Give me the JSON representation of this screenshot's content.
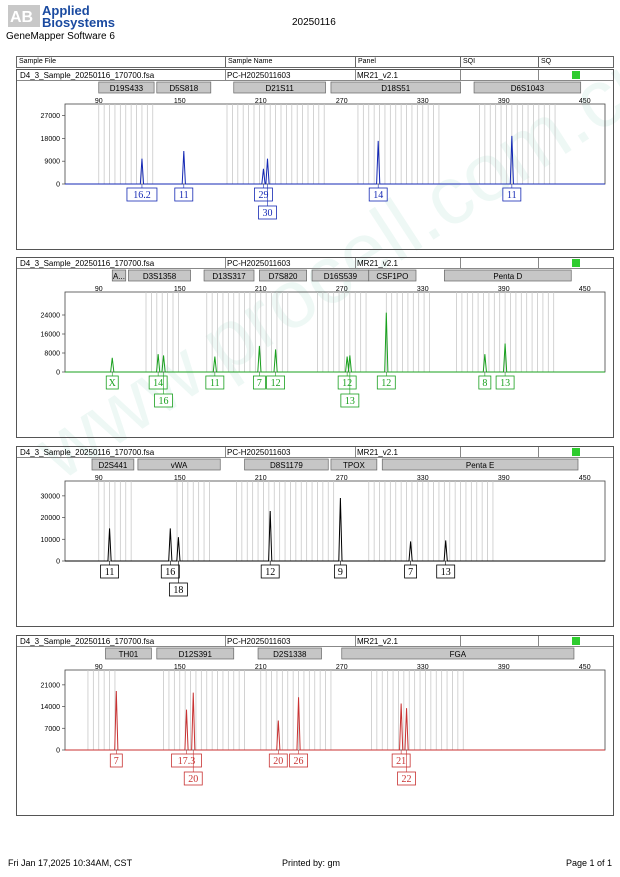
{
  "header": {
    "brand_line1": "Applied",
    "brand_line2": "Biosystems",
    "software": "GeneMapper Software 6",
    "date": "20250116"
  },
  "columns": {
    "sample_file": "Sample File",
    "sample_name": "Sample Name",
    "panel": "Panel",
    "sqi": "SQI",
    "sq": "SQ"
  },
  "watermark": "www.procell.com.cn",
  "footer": {
    "timestamp": "Fri Jan 17,2025 10:34AM, CST",
    "printed_by": "Printed by: gm",
    "page": "Page 1 of 1"
  },
  "chart_data": [
    {
      "type": "line",
      "sample_file": "D4_3_Sample_20250116_170700.fsa",
      "sample_name": "PC-H2025011603",
      "panel": "MR21_v2.1",
      "sq_status_color": "#2ecc2e",
      "color": "#1428b4",
      "xlim": [
        65,
        465
      ],
      "x_ticks": [
        90,
        150,
        210,
        270,
        330,
        390,
        450
      ],
      "ylim": [
        0,
        30000
      ],
      "y_ticks": [
        0,
        9000,
        18000,
        27000
      ],
      "markers": [
        {
          "name": "D19S433",
          "start": 90,
          "end": 131
        },
        {
          "name": "D5S818",
          "start": 133,
          "end": 173
        },
        {
          "name": "D21S11",
          "start": 190,
          "end": 258
        },
        {
          "name": "D18S51",
          "start": 262,
          "end": 358
        },
        {
          "name": "D6S1043",
          "start": 368,
          "end": 447
        }
      ],
      "bins": [
        [
          90,
          130
        ],
        [
          185,
          258
        ],
        [
          282,
          345
        ],
        [
          372,
          430
        ]
      ],
      "peaks": [
        {
          "x": 122,
          "y": 10000,
          "label": "16.2",
          "row": 0
        },
        {
          "x": 153,
          "y": 13000,
          "label": "11",
          "row": 0
        },
        {
          "x": 212,
          "y": 6000,
          "label": "29",
          "row": 0
        },
        {
          "x": 215,
          "y": 10000,
          "label": "30",
          "row": 1
        },
        {
          "x": 297,
          "y": 17000,
          "label": "14",
          "row": 0
        },
        {
          "x": 396,
          "y": 19000,
          "label": "11",
          "row": 0
        }
      ]
    },
    {
      "type": "line",
      "sample_file": "D4_3_Sample_20250116_170700.fsa",
      "sample_name": "PC-H2025011603",
      "panel": "MR21_v2.1",
      "sq_status_color": "#2ecc2e",
      "color": "#19a01e",
      "xlim": [
        65,
        465
      ],
      "x_ticks": [
        90,
        150,
        210,
        270,
        330,
        390,
        450
      ],
      "ylim": [
        0,
        32000
      ],
      "y_ticks": [
        0,
        8000,
        16000,
        24000
      ],
      "markers": [
        {
          "name": "A...",
          "start": 100,
          "end": 110
        },
        {
          "name": "D3S1358",
          "start": 112,
          "end": 158
        },
        {
          "name": "D13S317",
          "start": 168,
          "end": 205
        },
        {
          "name": "D7S820",
          "start": 209,
          "end": 244
        },
        {
          "name": "D16S539",
          "start": 248,
          "end": 290
        },
        {
          "name": "CSF1PO",
          "start": 290,
          "end": 325
        },
        {
          "name": "Penta D",
          "start": 346,
          "end": 440
        }
      ],
      "bins": [
        [
          125,
          150
        ],
        [
          170,
          232
        ],
        [
          252,
          290
        ],
        [
          303,
          335
        ],
        [
          355,
          430
        ]
      ],
      "peaks": [
        {
          "x": 100,
          "y": 6000,
          "label": "X",
          "row": 0
        },
        {
          "x": 134,
          "y": 7500,
          "label": "14",
          "row": 0
        },
        {
          "x": 138,
          "y": 7000,
          "label": "16",
          "row": 1
        },
        {
          "x": 176,
          "y": 6500,
          "label": "11",
          "row": 0
        },
        {
          "x": 209,
          "y": 11000,
          "label": "7",
          "row": 0
        },
        {
          "x": 221,
          "y": 9500,
          "label": "12",
          "row": 0
        },
        {
          "x": 274,
          "y": 6500,
          "label": "12",
          "row": 0
        },
        {
          "x": 276,
          "y": 7000,
          "label": "13",
          "row": 1
        },
        {
          "x": 303,
          "y": 25000,
          "label": "12",
          "row": 0
        },
        {
          "x": 376,
          "y": 7500,
          "label": "8",
          "row": 0
        },
        {
          "x": 391,
          "y": 12000,
          "label": "13",
          "row": 0
        }
      ]
    },
    {
      "type": "line",
      "sample_file": "D4_3_Sample_20250116_170700.fsa",
      "sample_name": "PC-H2025011603",
      "panel": "MR21_v2.1",
      "sq_status_color": "#2ecc2e",
      "color": "#000000",
      "xlim": [
        65,
        465
      ],
      "x_ticks": [
        90,
        150,
        210,
        270,
        330,
        390,
        450
      ],
      "ylim": [
        0,
        35000
      ],
      "y_ticks": [
        0,
        10000,
        20000,
        30000
      ],
      "markers": [
        {
          "name": "D2S441",
          "start": 85,
          "end": 116
        },
        {
          "name": "vWA",
          "start": 119,
          "end": 180
        },
        {
          "name": "D8S1179",
          "start": 198,
          "end": 260
        },
        {
          "name": "TPOX",
          "start": 262,
          "end": 296
        },
        {
          "name": "Penta E",
          "start": 300,
          "end": 445
        }
      ],
      "bins": [
        [
          90,
          116
        ],
        [
          148,
          175
        ],
        [
          192,
          265
        ],
        [
          290,
          385
        ]
      ],
      "peaks": [
        {
          "x": 98,
          "y": 15000,
          "label": "11",
          "row": 0
        },
        {
          "x": 143,
          "y": 15000,
          "label": "16",
          "row": 0
        },
        {
          "x": 149,
          "y": 11000,
          "label": "18",
          "row": 1
        },
        {
          "x": 217,
          "y": 23000,
          "label": "12",
          "row": 0
        },
        {
          "x": 269,
          "y": 29000,
          "label": "9",
          "row": 0
        },
        {
          "x": 321,
          "y": 9000,
          "label": "7",
          "row": 0
        },
        {
          "x": 347,
          "y": 9500,
          "label": "13",
          "row": 0
        }
      ]
    },
    {
      "type": "line",
      "sample_file": "D4_3_Sample_20250116_170700.fsa",
      "sample_name": "PC-H2025011603",
      "panel": "MR21_v2.1",
      "sq_status_color": "#2ecc2e",
      "color": "#c83232",
      "xlim": [
        65,
        465
      ],
      "x_ticks": [
        90,
        150,
        210,
        270,
        330,
        390,
        450
      ],
      "ylim": [
        0,
        24500
      ],
      "y_ticks": [
        0,
        7000,
        14000,
        21000
      ],
      "markers": [
        {
          "name": "TH01",
          "start": 95,
          "end": 129
        },
        {
          "name": "D12S391",
          "start": 133,
          "end": 190
        },
        {
          "name": "D2S1338",
          "start": 208,
          "end": 255
        },
        {
          "name": "FGA",
          "start": 270,
          "end": 442
        }
      ],
      "bins": [
        [
          82,
          105
        ],
        [
          138,
          200
        ],
        [
          210,
          262
        ],
        [
          292,
          360
        ]
      ],
      "peaks": [
        {
          "x": 103,
          "y": 19000,
          "label": "7",
          "row": 0
        },
        {
          "x": 155,
          "y": 13000,
          "label": "17.3",
          "row": 0
        },
        {
          "x": 160,
          "y": 18500,
          "label": "20",
          "row": 1
        },
        {
          "x": 223,
          "y": 9500,
          "label": "20",
          "row": 0
        },
        {
          "x": 238,
          "y": 17000,
          "label": "26",
          "row": 0
        },
        {
          "x": 314,
          "y": 15000,
          "label": "21",
          "row": 0
        },
        {
          "x": 318,
          "y": 13500,
          "label": "22",
          "row": 1
        }
      ]
    }
  ]
}
